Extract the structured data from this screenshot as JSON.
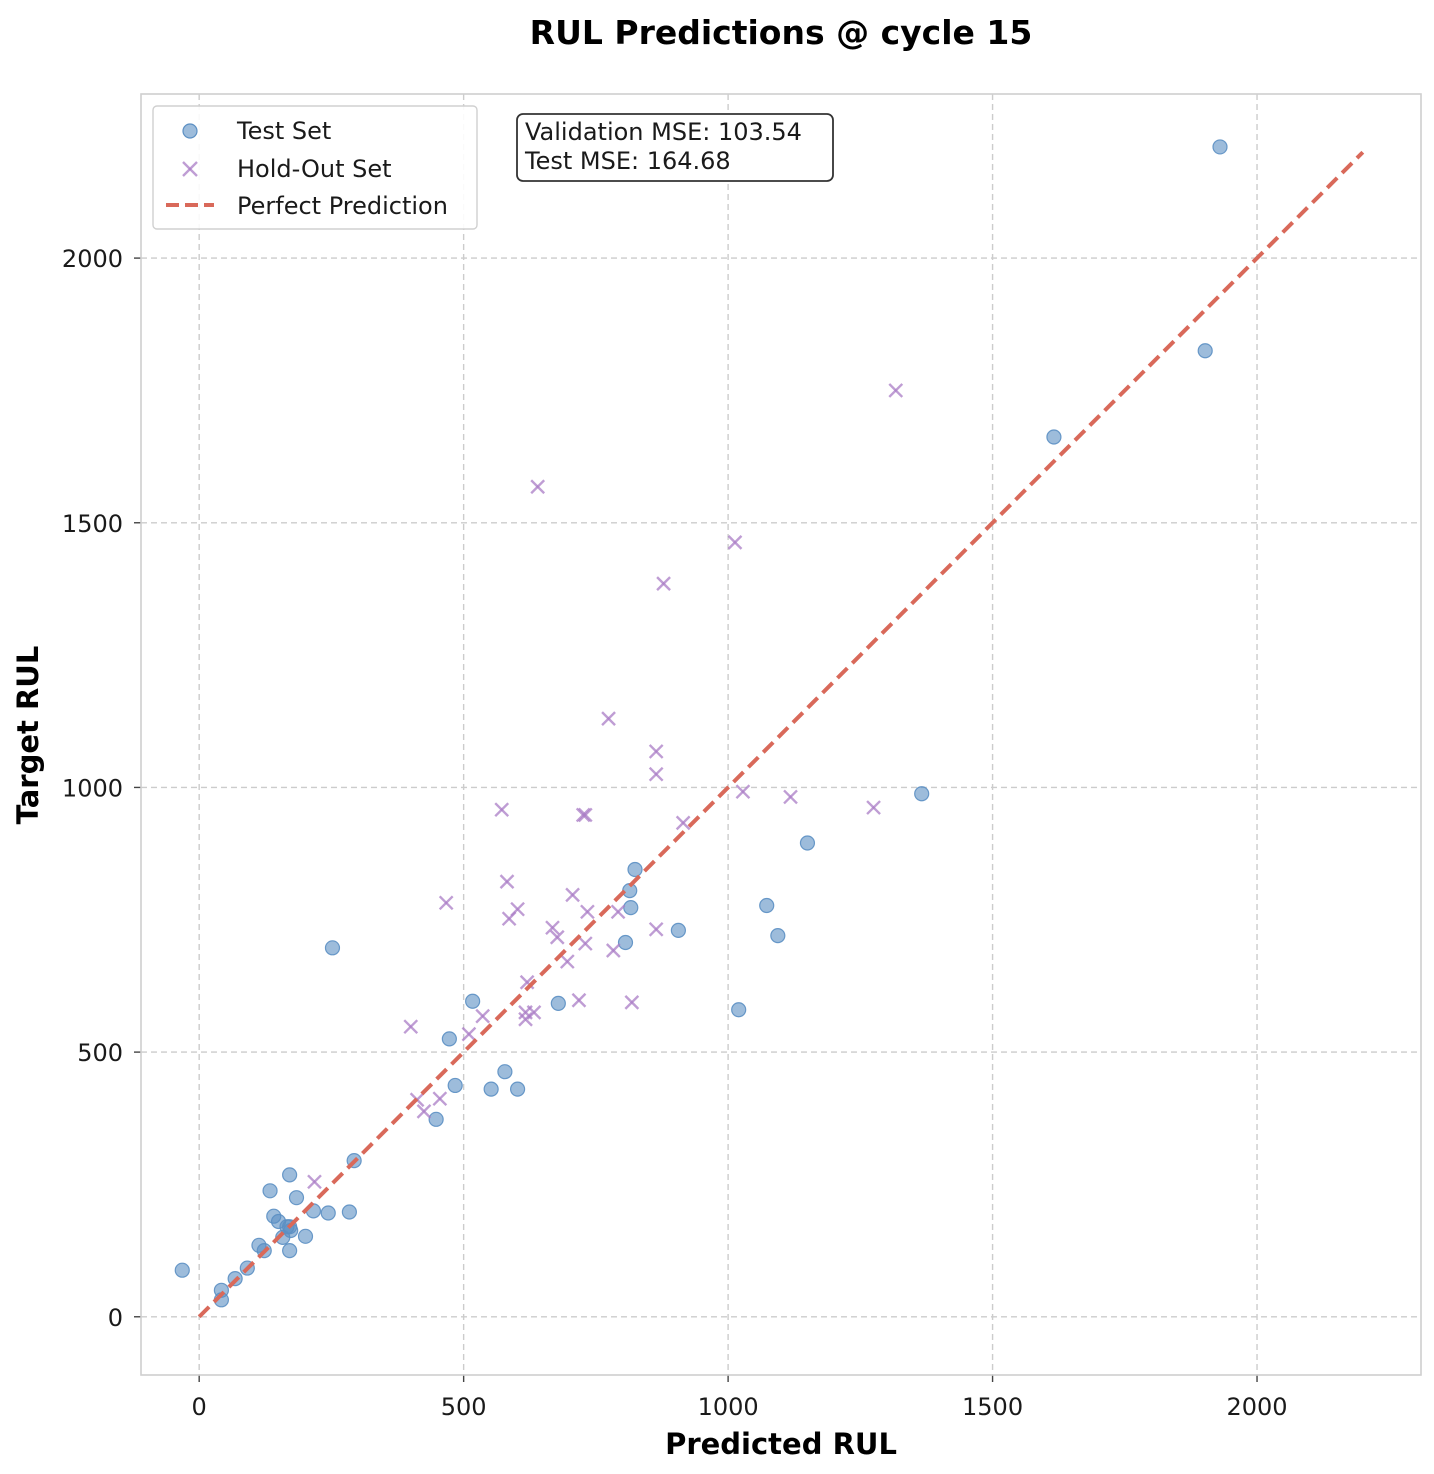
{
  "chart_data": {
    "type": "scatter",
    "title": "RUL Predictions @ cycle 15",
    "xlabel": "Predicted RUL",
    "ylabel": "Target RUL",
    "xlim": [
      -110,
      2310
    ],
    "ylim": [
      -110,
      2310
    ],
    "xticks": [
      0,
      500,
      1000,
      1500,
      2000
    ],
    "yticks": [
      0,
      500,
      1000,
      1500,
      2000
    ],
    "xtick_labels": [
      "0",
      "500",
      "1000",
      "1500",
      "2000"
    ],
    "ytick_labels": [
      "0",
      "500",
      "1000",
      "1500",
      "2000"
    ],
    "grid": true,
    "legend_position": "top-left",
    "annotation_lines": [
      "Validation MSE: 103.54",
      "Test MSE: 164.68"
    ],
    "annotation_position": "top-center",
    "series": [
      {
        "name": "Test Set",
        "marker": "circle",
        "color": "#5b8fc3",
        "points": [
          [
            1930,
            2210
          ],
          [
            1902,
            1825
          ],
          [
            1616,
            1662
          ],
          [
            1366,
            988
          ],
          [
            1150,
            895
          ],
          [
            1073,
            777
          ],
          [
            1094,
            720
          ],
          [
            1020,
            580
          ],
          [
            906,
            730
          ],
          [
            824,
            845
          ],
          [
            814,
            805
          ],
          [
            816,
            773
          ],
          [
            806,
            707
          ],
          [
            679,
            592
          ],
          [
            517,
            596
          ],
          [
            473,
            525
          ],
          [
            484,
            437
          ],
          [
            578,
            463
          ],
          [
            552,
            430
          ],
          [
            602,
            430
          ],
          [
            448,
            373
          ],
          [
            293,
            295
          ],
          [
            252,
            697
          ],
          [
            284,
            198
          ],
          [
            244,
            196
          ],
          [
            216,
            200
          ],
          [
            201,
            152
          ],
          [
            184,
            225
          ],
          [
            171,
            268
          ],
          [
            171,
            170
          ],
          [
            173,
            163
          ],
          [
            166,
            170
          ],
          [
            158,
            150
          ],
          [
            171,
            125
          ],
          [
            150,
            180
          ],
          [
            141,
            190
          ],
          [
            134,
            238
          ],
          [
            123,
            125
          ],
          [
            113,
            135
          ],
          [
            91,
            92
          ],
          [
            68,
            72
          ],
          [
            42,
            50
          ],
          [
            42,
            32
          ],
          [
            -32,
            88
          ]
        ]
      },
      {
        "name": "Hold-Out Set",
        "marker": "x",
        "color": "#a97cc5",
        "points": [
          [
            1317,
            1750
          ],
          [
            640,
            1568
          ],
          [
            1013,
            1463
          ],
          [
            878,
            1385
          ],
          [
            774,
            1130
          ],
          [
            864,
            1068
          ],
          [
            864,
            1025
          ],
          [
            572,
            958
          ],
          [
            726,
            948
          ],
          [
            730,
            948
          ],
          [
            1028,
            992
          ],
          [
            1118,
            982
          ],
          [
            1275,
            962
          ],
          [
            915,
            933
          ],
          [
            582,
            822
          ],
          [
            706,
            797
          ],
          [
            467,
            782
          ],
          [
            602,
            770
          ],
          [
            734,
            765
          ],
          [
            792,
            765
          ],
          [
            586,
            752
          ],
          [
            668,
            735
          ],
          [
            864,
            732
          ],
          [
            677,
            717
          ],
          [
            730,
            705
          ],
          [
            783,
            692
          ],
          [
            696,
            671
          ],
          [
            620,
            632
          ],
          [
            400,
            548
          ],
          [
            718,
            598
          ],
          [
            818,
            594
          ],
          [
            633,
            575
          ],
          [
            617,
            575
          ],
          [
            617,
            562
          ],
          [
            536,
            568
          ],
          [
            510,
            534
          ],
          [
            412,
            410
          ],
          [
            425,
            388
          ],
          [
            455,
            412
          ],
          [
            218,
            255
          ]
        ]
      },
      {
        "name": "Perfect Prediction",
        "line_style": "dashed",
        "color": "#d9695a",
        "points": [
          [
            0,
            0
          ],
          [
            2200,
            2200
          ]
        ]
      }
    ]
  }
}
